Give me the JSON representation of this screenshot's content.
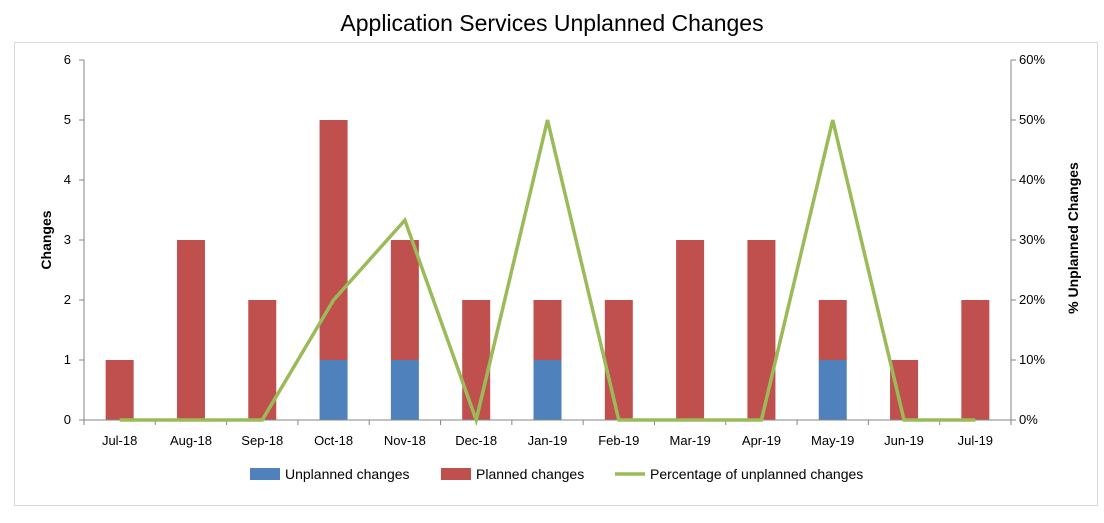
{
  "chart_data": {
    "type": "bar",
    "title": "Application Services Unplanned Changes",
    "categories": [
      "Jul-18",
      "Aug-18",
      "Sep-18",
      "Oct-18",
      "Nov-18",
      "Dec-18",
      "Jan-19",
      "Feb-19",
      "Mar-19",
      "Apr-19",
      "May-19",
      "Jun-19",
      "Jul-19"
    ],
    "series": [
      {
        "name": "Unplanned changes",
        "kind": "stacked-bar",
        "axis": "left",
        "color": "#4f81bd",
        "values": [
          0,
          0,
          0,
          1,
          1,
          0,
          1,
          0,
          0,
          0,
          1,
          0,
          0
        ]
      },
      {
        "name": "Planned changes",
        "kind": "stacked-bar",
        "axis": "left",
        "color": "#c0504d",
        "values": [
          1,
          3,
          2,
          4,
          2,
          2,
          1,
          2,
          3,
          3,
          1,
          1,
          2
        ]
      },
      {
        "name": "Percentage of unplanned changes",
        "kind": "line",
        "axis": "right",
        "color": "#9bbb59",
        "values": [
          0,
          0,
          0,
          20,
          33.3,
          0,
          50,
          0,
          0,
          0,
          50,
          0,
          0
        ]
      }
    ],
    "ylabel": "Changes",
    "ylabel_right": "% Unplanned Changes",
    "ylim": [
      0,
      6
    ],
    "ylim_right": [
      0,
      60
    ],
    "yticks": [
      "0",
      "1",
      "2",
      "3",
      "4",
      "5",
      "6"
    ],
    "yticks_right": [
      "0%",
      "10%",
      "20%",
      "30%",
      "40%",
      "50%",
      "60%"
    ],
    "grid": false,
    "legend_position": "bottom"
  }
}
